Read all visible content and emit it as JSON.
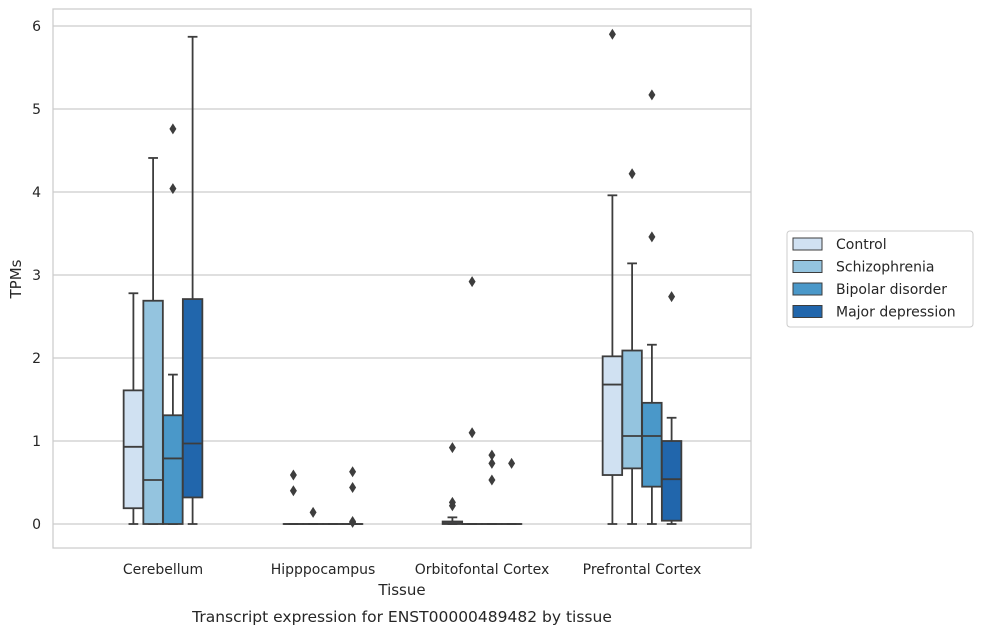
{
  "chart_data": {
    "type": "box",
    "title": "",
    "caption": "Transcript expression for ENST00000489482 by tissue",
    "xlabel": "Tissue",
    "ylabel": "TPMs",
    "ylim": [
      -0.3,
      6.2
    ],
    "yticks": [
      0,
      1,
      2,
      3,
      4,
      5,
      6
    ],
    "grid": true,
    "legend_position": "right",
    "categories": [
      "Cerebellum",
      "Hipppocampus",
      "Orbitofontal Cortex",
      "Prefrontal Cortex"
    ],
    "series": [
      {
        "name": "Control",
        "color": "#d0e1f2",
        "boxes": [
          {
            "whislo": 0.0,
            "q1": 0.19,
            "med": 0.93,
            "q3": 1.61,
            "whishi": 2.78,
            "fliers": []
          },
          {
            "whislo": 0.0,
            "q1": 0.0,
            "med": 0.0,
            "q3": 0.0,
            "whishi": 0.0,
            "fliers": [
              0.4,
              0.59
            ]
          },
          {
            "whislo": 0.0,
            "q1": 0.0,
            "med": 0.01,
            "q3": 0.03,
            "whishi": 0.08,
            "fliers": [
              0.22,
              0.26,
              0.92
            ]
          },
          {
            "whislo": 0.0,
            "q1": 0.59,
            "med": 1.68,
            "q3": 2.02,
            "whishi": 3.96,
            "fliers": [
              5.9
            ]
          }
        ]
      },
      {
        "name": "Schizophrenia",
        "color": "#94c4df",
        "boxes": [
          {
            "whislo": 0.0,
            "q1": 0.0,
            "med": 0.53,
            "q3": 2.69,
            "whishi": 4.41,
            "fliers": []
          },
          {
            "whislo": 0.0,
            "q1": 0.0,
            "med": 0.0,
            "q3": 0.0,
            "whishi": 0.0,
            "fliers": [
              0.14
            ]
          },
          {
            "whislo": 0.0,
            "q1": 0.0,
            "med": 0.0,
            "q3": 0.0,
            "whishi": 0.0,
            "fliers": [
              1.1,
              2.92
            ]
          },
          {
            "whislo": 0.0,
            "q1": 0.67,
            "med": 1.06,
            "q3": 2.09,
            "whishi": 3.14,
            "fliers": [
              4.22
            ]
          }
        ]
      },
      {
        "name": "Bipolar disorder",
        "color": "#4a98c9",
        "boxes": [
          {
            "whislo": 0.0,
            "q1": 0.0,
            "med": 0.79,
            "q3": 1.31,
            "whishi": 1.8,
            "fliers": [
              4.04,
              4.76
            ]
          },
          {
            "whislo": 0.0,
            "q1": 0.0,
            "med": 0.0,
            "q3": 0.0,
            "whishi": 0.0,
            "fliers": []
          },
          {
            "whislo": 0.0,
            "q1": 0.0,
            "med": 0.0,
            "q3": 0.0,
            "whishi": 0.0,
            "fliers": [
              0.53,
              0.73,
              0.83
            ]
          },
          {
            "whislo": 0.0,
            "q1": 0.45,
            "med": 1.06,
            "q3": 1.46,
            "whishi": 2.16,
            "fliers": [
              3.46,
              5.17
            ]
          }
        ]
      },
      {
        "name": "Major depression",
        "color": "#2166ac",
        "boxes": [
          {
            "whislo": 0.0,
            "q1": 0.32,
            "med": 0.97,
            "q3": 2.71,
            "whishi": 5.87,
            "fliers": []
          },
          {
            "whislo": 0.0,
            "q1": 0.0,
            "med": 0.0,
            "q3": 0.0,
            "whishi": 0.0,
            "fliers": [
              0.02,
              0.03,
              0.44,
              0.63
            ]
          },
          {
            "whislo": 0.0,
            "q1": 0.0,
            "med": 0.0,
            "q3": 0.0,
            "whishi": 0.0,
            "fliers": [
              0.73
            ]
          },
          {
            "whislo": 0.0,
            "q1": 0.04,
            "med": 0.54,
            "q3": 1.0,
            "whishi": 1.28,
            "fliers": [
              2.74
            ]
          }
        ]
      }
    ]
  }
}
